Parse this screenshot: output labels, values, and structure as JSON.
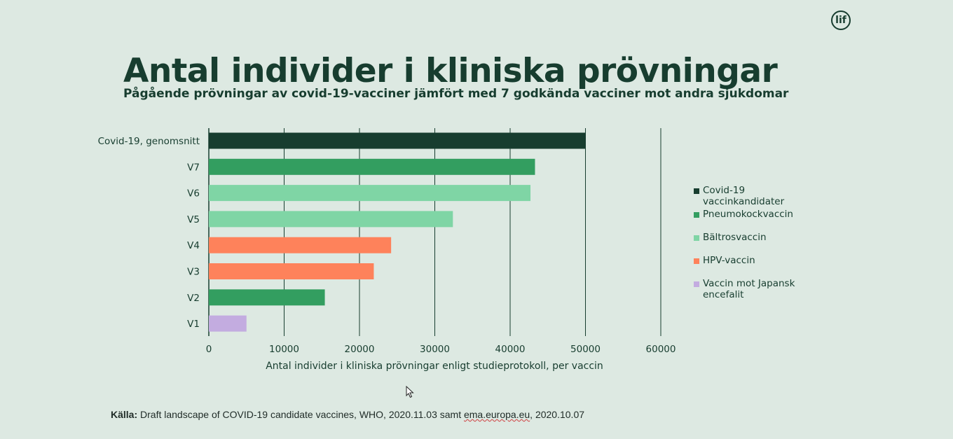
{
  "logo": {
    "text": "lif"
  },
  "header": {
    "title": "Antal individer i kliniska prövningar",
    "subtitle": "Pågående prövningar av covid-19-vacciner jämfört med 7 godkända vacciner mot andra sjukdomar"
  },
  "chart_data": {
    "type": "bar",
    "orientation": "horizontal",
    "categories": [
      "Covid-19, genomsnitt",
      "V7",
      "V6",
      "V5",
      "V4",
      "V3",
      "V2",
      "V1"
    ],
    "values": [
      50000,
      43300,
      42700,
      32400,
      24200,
      21900,
      15400,
      5000
    ],
    "bar_groups": [
      "Covid-19 vaccinkandidater",
      "Pneumokockvaccin",
      "Bältrosvaccin",
      "Bältrosvaccin",
      "HPV-vaccin",
      "HPV-vaccin",
      "Pneumokockvaccin",
      "Vaccin mot Japansk encefalit"
    ],
    "xlabel": "Antal individer i kliniska prövningar enligt studieprotokoll, per vaccin",
    "xlim": [
      0,
      60000
    ],
    "xticks": [
      0,
      10000,
      20000,
      30000,
      40000,
      50000,
      60000
    ],
    "xtick_labels": [
      "0",
      "10000",
      "20000",
      "30000",
      "40000",
      "50000",
      "60000"
    ],
    "grid": "vertical",
    "legend_position": "right",
    "legend": [
      {
        "name": "Covid-19 vaccinkandidater",
        "color": "#173d2f"
      },
      {
        "name": "Pneumokockvaccin",
        "color": "#339e60"
      },
      {
        "name": "Bältrosvaccin",
        "color": "#7fd5a5"
      },
      {
        "name": "HPV-vaccin",
        "color": "#fe825b"
      },
      {
        "name": "Vaccin mot Japansk encefalit",
        "color": "#c3ace0"
      }
    ]
  },
  "source": {
    "label": "Källa:",
    "text_before": " Draft landscape of COVID-19 candidate vaccines, WHO, 2020.11.03 samt ",
    "site": "ema.europa.eu",
    "text_after": ", 2020.10.07"
  }
}
